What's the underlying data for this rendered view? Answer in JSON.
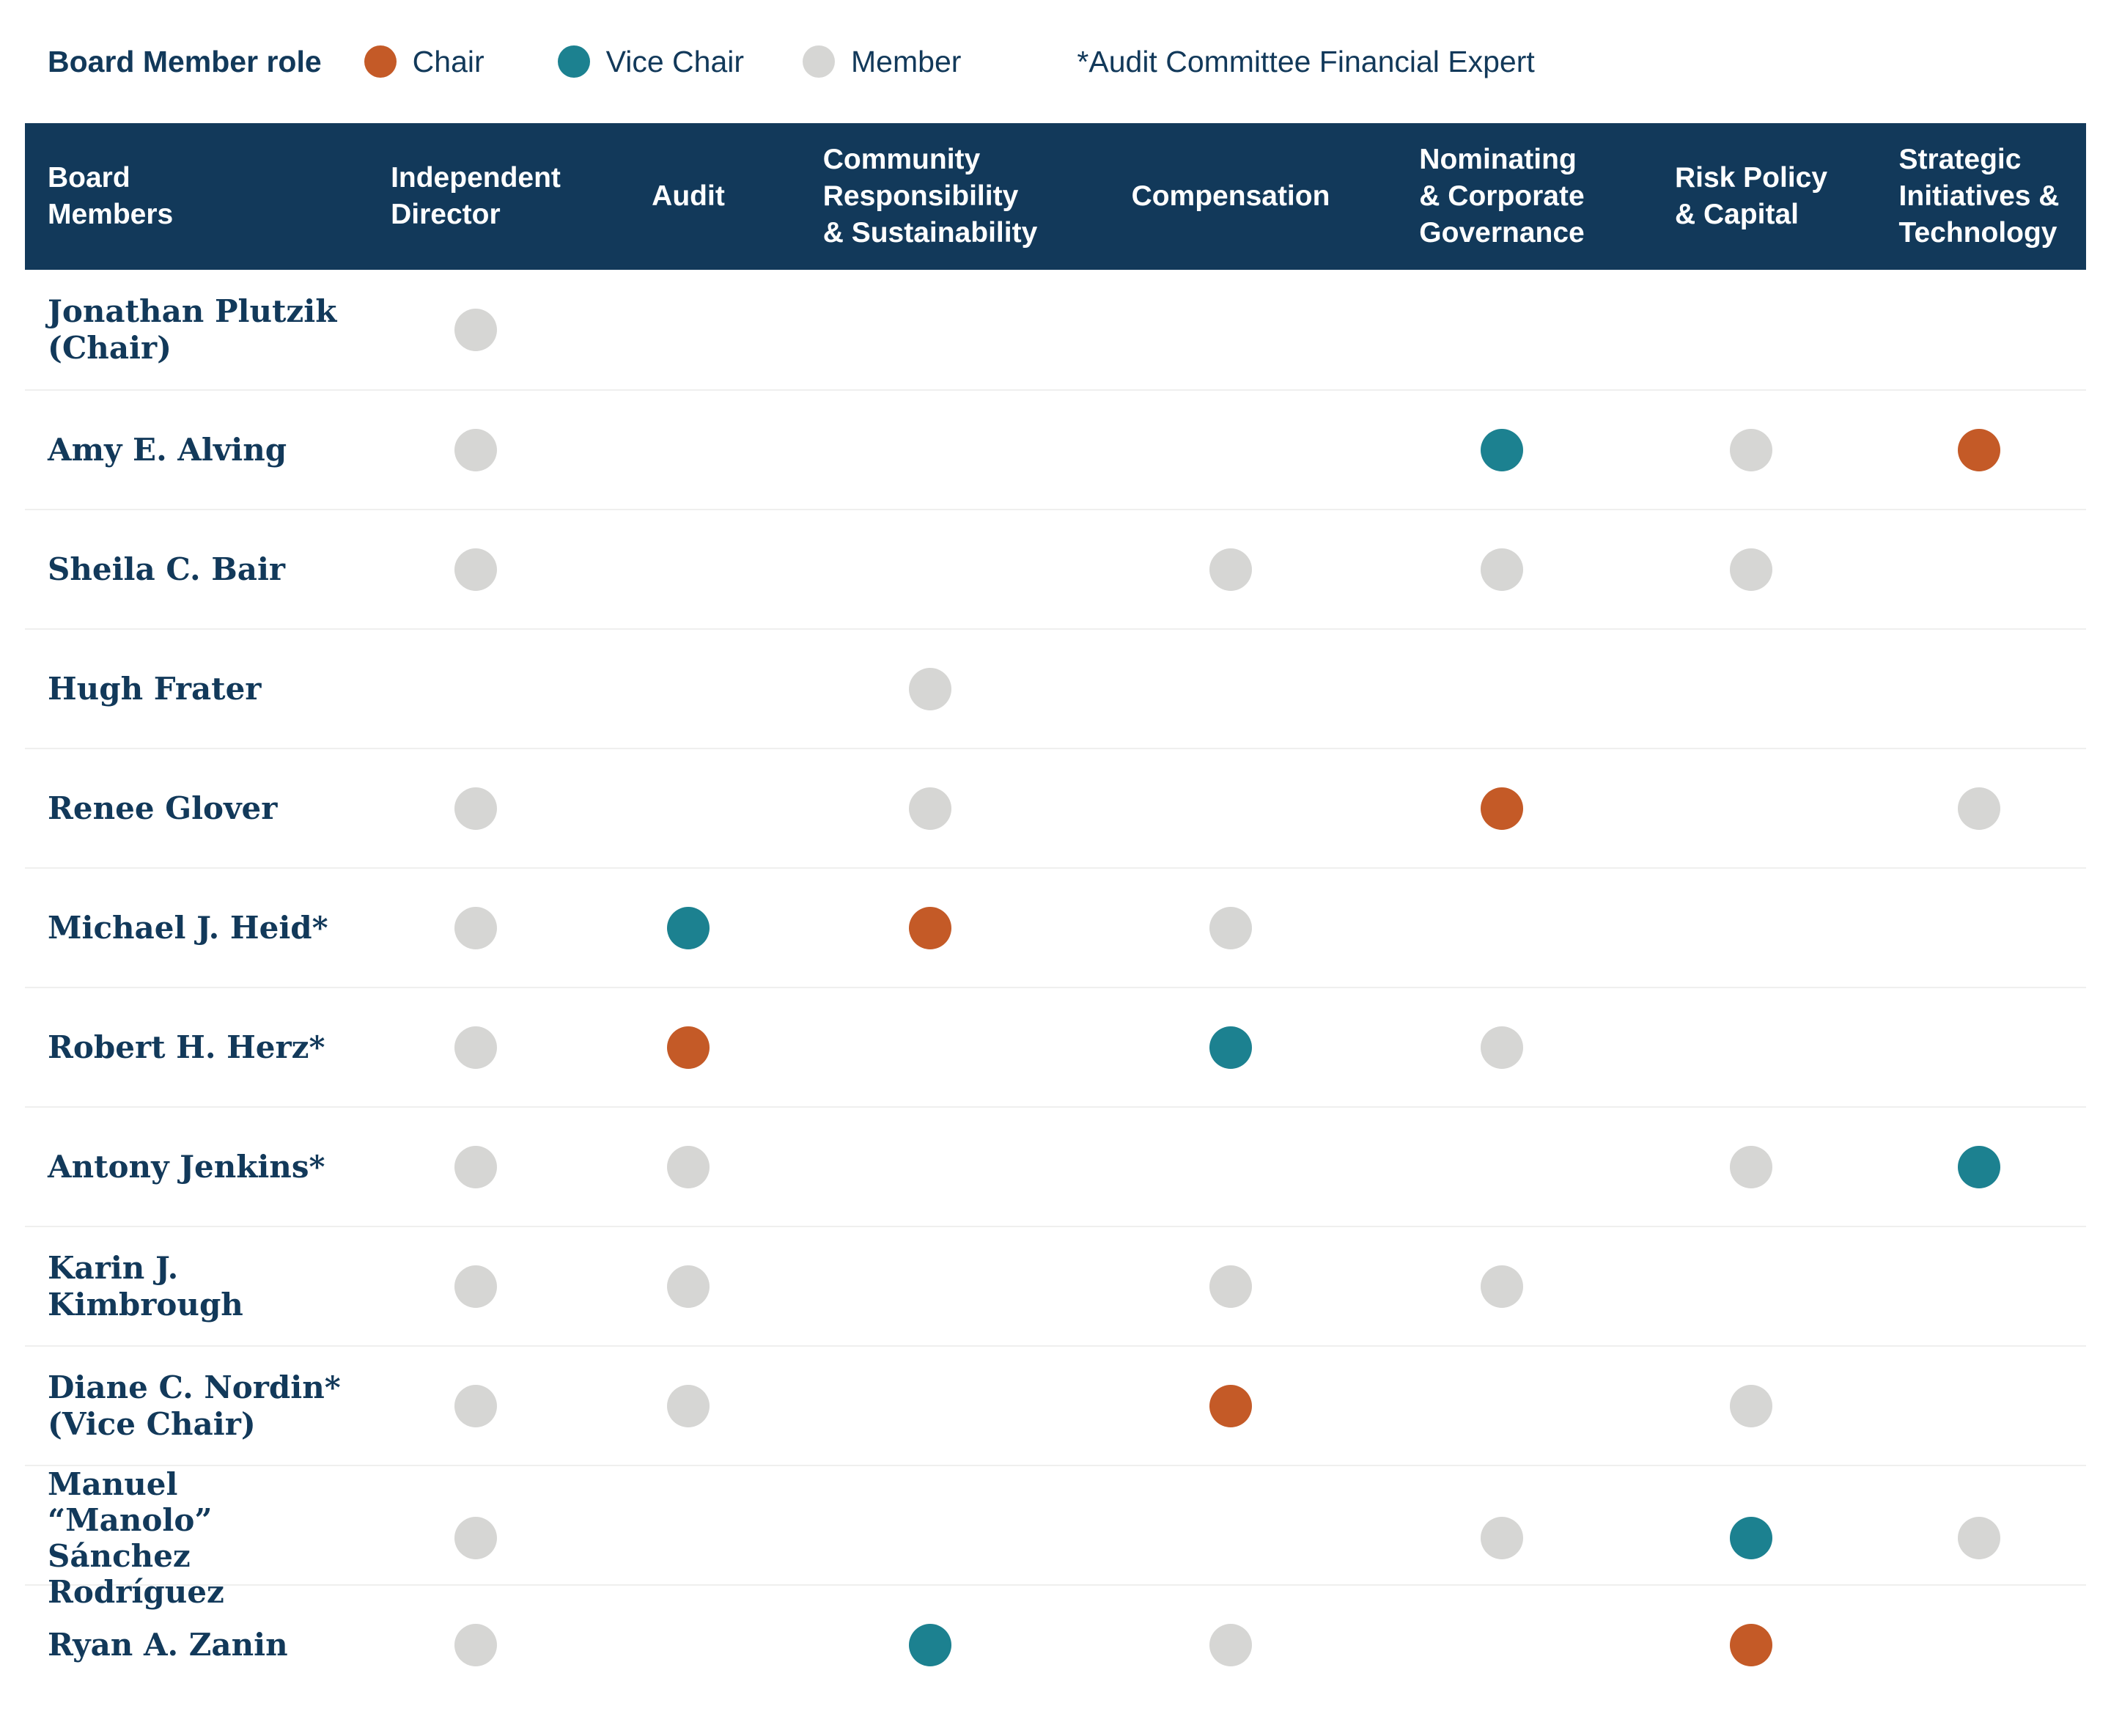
{
  "colors": {
    "navy": "#12395A",
    "chair": "#C45A27",
    "vice_chair": "#1C8190",
    "member": "#D6D6D4"
  },
  "legend": {
    "title": "Board Member role",
    "items": [
      {
        "role": "chair",
        "label": "Chair"
      },
      {
        "role": "vice-chair",
        "label": "Vice Chair"
      },
      {
        "role": "member",
        "label": "Member"
      }
    ],
    "note": "*Audit Committee Financial Expert"
  },
  "table": {
    "columns": [
      "Board\nMembers",
      "Independent\nDirector",
      "Audit",
      "Community\nResponsibility\n& Sustainability",
      "Compensation",
      "Nominating\n& Corporate\nGovernance",
      "Risk Policy\n& Capital",
      "Strategic\nInitiatives &\nTechnology"
    ],
    "rows": [
      {
        "name": "Jonathan Plutzik\n(Chair)",
        "roles": [
          "member",
          null,
          null,
          null,
          null,
          null,
          null
        ]
      },
      {
        "name": "Amy E. Alving",
        "roles": [
          "member",
          null,
          null,
          null,
          "vice-chair",
          "member",
          "chair"
        ]
      },
      {
        "name": "Sheila C. Bair",
        "roles": [
          "member",
          null,
          null,
          "member",
          "member",
          "member",
          null
        ]
      },
      {
        "name": "Hugh Frater",
        "roles": [
          null,
          null,
          "member",
          null,
          null,
          null,
          null
        ]
      },
      {
        "name": "Renee Glover",
        "roles": [
          "member",
          null,
          "member",
          null,
          "chair",
          null,
          "member"
        ]
      },
      {
        "name": "Michael J. Heid*",
        "roles": [
          "member",
          "vice-chair",
          "chair",
          "member",
          null,
          null,
          null
        ]
      },
      {
        "name": "Robert H. Herz*",
        "roles": [
          "member",
          "chair",
          null,
          "vice-chair",
          "member",
          null,
          null
        ]
      },
      {
        "name": "Antony Jenkins*",
        "roles": [
          "member",
          "member",
          null,
          null,
          null,
          "member",
          "vice-chair"
        ]
      },
      {
        "name": "Karin J. Kimbrough",
        "roles": [
          "member",
          "member",
          null,
          "member",
          "member",
          null,
          null
        ]
      },
      {
        "name": "Diane C. Nordin*\n(Vice Chair)",
        "roles": [
          "member",
          "member",
          null,
          "chair",
          null,
          "member",
          null
        ]
      },
      {
        "name": "Manuel “Manolo”\nSánchez Rodríguez",
        "roles": [
          "member",
          null,
          null,
          null,
          "member",
          "vice-chair",
          "member"
        ]
      },
      {
        "name": "Ryan A. Zanin",
        "roles": [
          "member",
          null,
          "vice-chair",
          "member",
          null,
          "chair",
          null
        ]
      }
    ]
  }
}
